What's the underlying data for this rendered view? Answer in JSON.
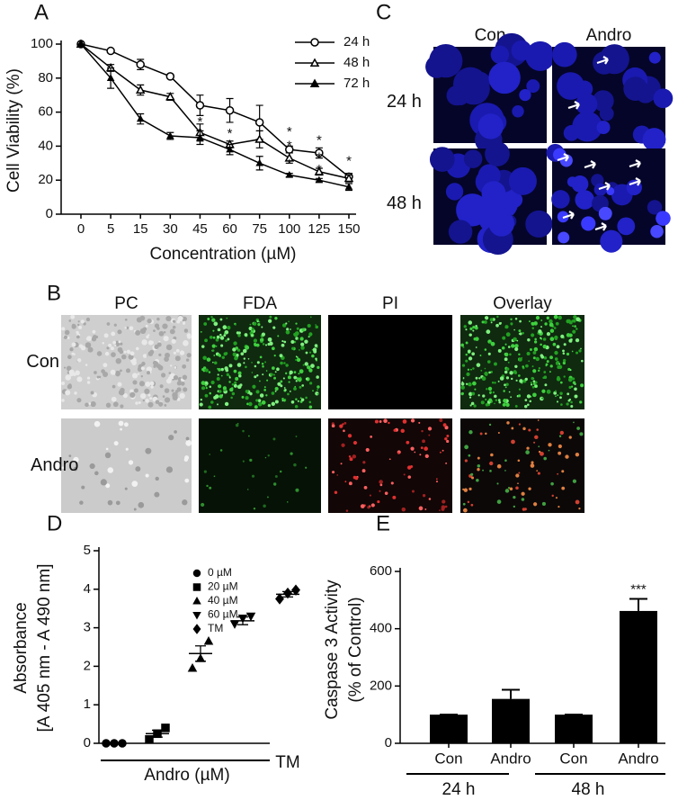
{
  "chart_data": [
    {
      "type": "line",
      "panel_label": "A",
      "categories": [
        "0",
        "5",
        "15",
        "30",
        "45",
        "60",
        "75",
        "100",
        "125",
        "150"
      ],
      "x_label": "Concentration (µM)",
      "y_label": "Cell Viability (%)",
      "ylim": [
        0,
        100
      ],
      "yticks": [
        0,
        20,
        40,
        60,
        80,
        100
      ],
      "legend": "upper right",
      "series": [
        {
          "name": "24 h",
          "color": "#000000",
          "marker": "open-circle",
          "values": [
            100,
            96,
            88,
            81,
            64,
            61,
            54,
            38,
            36,
            22
          ],
          "errors": [
            0,
            1,
            3,
            1,
            6,
            7,
            10,
            2,
            3,
            2
          ]
        },
        {
          "name": "48 h",
          "color": "#000000",
          "marker": "open-triangle",
          "values": [
            100,
            86,
            73,
            69,
            48,
            41,
            44,
            33,
            25,
            21
          ],
          "errors": [
            0,
            2,
            3,
            2,
            5,
            2,
            5,
            3,
            2,
            2
          ]
        },
        {
          "name": "72 h",
          "color": "#000000",
          "marker": "filled-triangle",
          "values": [
            100,
            80,
            56,
            46,
            45,
            38,
            30,
            23,
            20,
            16
          ],
          "errors": [
            0,
            6,
            3,
            2,
            4,
            3,
            4,
            1,
            1,
            2
          ]
        }
      ],
      "annotations": [
        {
          "text": "*",
          "x_index": 4,
          "y": 54
        },
        {
          "text": "*",
          "x_index": 5,
          "y": 47
        },
        {
          "text": "*",
          "x_index": 7,
          "y": 48
        },
        {
          "text": "*",
          "x_index": 7,
          "y": 40
        },
        {
          "text": "*",
          "x_index": 7,
          "y": 29
        },
        {
          "text": "*",
          "x_index": 8,
          "y": 43
        },
        {
          "text": "*",
          "x_index": 8,
          "y": 33
        },
        {
          "text": "*",
          "x_index": 8,
          "y": 26
        },
        {
          "text": "*",
          "x_index": 9,
          "y": 31
        }
      ]
    },
    {
      "type": "scatter",
      "panel_label": "D",
      "y_label": [
        "Absorbance",
        "[A 405 nm - A 490 nm]"
      ],
      "ylim": [
        0,
        5
      ],
      "yticks": [
        0,
        1,
        2,
        3,
        4,
        5
      ],
      "legend": "upper left",
      "series": [
        {
          "name": "0 µM",
          "marker": "circle",
          "values": [
            0,
            0,
            0
          ],
          "mean": 0,
          "sem": 0
        },
        {
          "name": "20 µM",
          "marker": "square",
          "values": [
            0.1,
            0.25,
            0.4
          ],
          "mean": 0.25,
          "sem": 0.09
        },
        {
          "name": "40 µM",
          "marker": "triangle-up",
          "values": [
            1.95,
            2.2,
            2.65
          ],
          "mean": 2.33,
          "sem": 0.2
        },
        {
          "name": "60 µM",
          "marker": "triangle-down",
          "values": [
            3.1,
            3.25,
            3.3
          ],
          "mean": 3.18,
          "sem": 0.1
        },
        {
          "name": "TM",
          "marker": "diamond",
          "values": [
            3.75,
            3.9,
            3.98
          ],
          "mean": 3.87,
          "sem": 0.07
        }
      ],
      "group_labels": [
        "Andro (µM)",
        "TM"
      ]
    },
    {
      "type": "bar",
      "panel_label": "E",
      "y_label": [
        "Caspase 3 Activity",
        "(% of Control)"
      ],
      "categories": [
        "Con",
        "Andro",
        "Con",
        "Andro"
      ],
      "values": [
        100,
        155,
        100,
        462
      ],
      "errors": [
        0,
        32,
        0,
        42
      ],
      "color": "#000000",
      "ylim": [
        0,
        600
      ],
      "yticks": [
        0,
        200,
        400,
        600
      ],
      "annotations": [
        {
          "text": "***",
          "x_index": 3
        }
      ],
      "groups": [
        "24 h",
        "48 h"
      ]
    }
  ],
  "image_panels": [
    {
      "panel_label": "B",
      "columns": [
        "PC",
        "FDA",
        "PI",
        "Overlay"
      ],
      "rows": [
        "Con",
        "Andro"
      ]
    },
    {
      "panel_label": "C",
      "columns": [
        "Con",
        "Andro"
      ],
      "rows": [
        "24 h",
        "48 h"
      ]
    }
  ]
}
